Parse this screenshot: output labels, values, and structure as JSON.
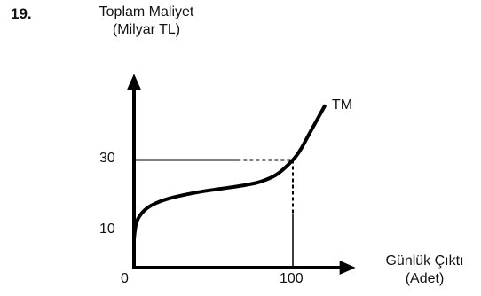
{
  "question_number": "19.",
  "chart_data": {
    "type": "line",
    "ylabel_line1": "Toplam Maliyet",
    "ylabel_line2": "(Milyar TL)",
    "xlabel_line1": "Günlük Çıktı",
    "xlabel_line2": "(Adet)",
    "x_ticks": [
      "0",
      "100"
    ],
    "y_ticks": [
      "10",
      "30"
    ],
    "series": [
      {
        "name": "TM",
        "x": [
          0,
          1,
          3,
          8,
          15,
          25,
          40,
          55,
          70,
          80,
          90,
          100,
          105,
          110,
          115,
          120
        ],
        "y": [
          8,
          11.5,
          14,
          16.5,
          18.2,
          19.6,
          21,
          22,
          23,
          24,
          26,
          30,
          33,
          37,
          41,
          45
        ]
      }
    ],
    "reference_point": {
      "x": 100,
      "y": 30
    },
    "axes_origin": {
      "x": 0,
      "y": 0
    },
    "xlim": [
      0,
      135
    ],
    "ylim": [
      0,
      55
    ]
  }
}
